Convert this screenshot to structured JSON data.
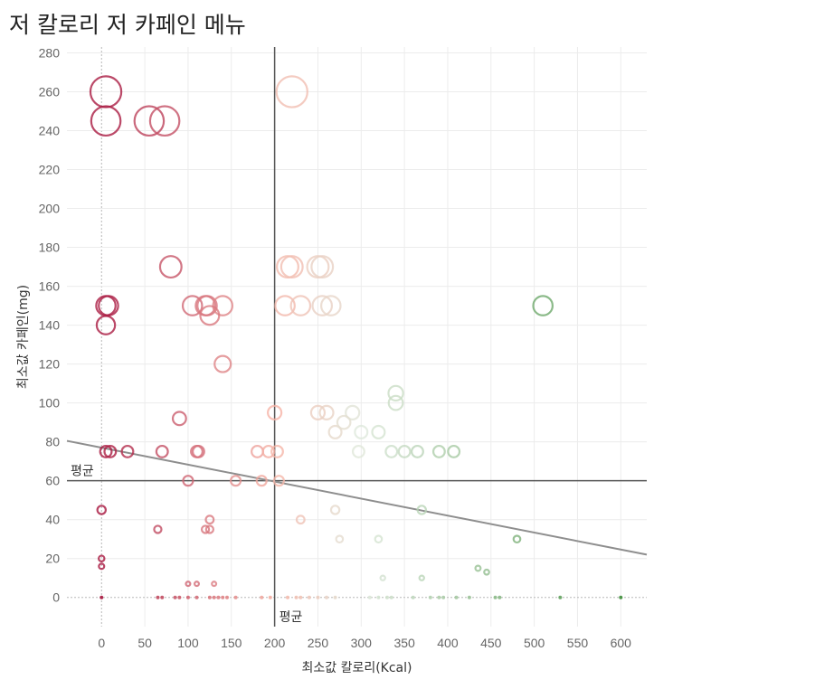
{
  "chart_data": {
    "type": "scatter",
    "title": "저 칼로리 저 카페인 메뉴",
    "xlabel": "최소값 칼로리(Kcal)",
    "ylabel": "최소값 카페인(mg)",
    "xlim": [
      -40,
      630
    ],
    "ylim": [
      -15,
      283
    ],
    "xticks": [
      0,
      50,
      100,
      150,
      200,
      250,
      300,
      350,
      400,
      450,
      500,
      550,
      600
    ],
    "yticks": [
      0,
      20,
      40,
      60,
      80,
      100,
      120,
      140,
      160,
      180,
      200,
      220,
      240,
      260,
      280
    ],
    "reference_lines": [
      {
        "axis": "x",
        "value": 200,
        "label": "평균"
      },
      {
        "axis": "y",
        "value": 60,
        "label": "평균"
      }
    ],
    "trend_line": {
      "x0": -40,
      "y0": 80.5,
      "x1": 630,
      "y1": 22
    },
    "grid": true,
    "color_scale": {
      "low": "#a8173f",
      "mid": "#f6b3a6",
      "high_mid": "#dfe9dc",
      "high": "#3e8e3a"
    },
    "points": [
      {
        "x": 5,
        "y": 260
      },
      {
        "x": 220,
        "y": 260
      },
      {
        "x": 5,
        "y": 245
      },
      {
        "x": 55,
        "y": 245
      },
      {
        "x": 73,
        "y": 245
      },
      {
        "x": 80,
        "y": 170
      },
      {
        "x": 215,
        "y": 170
      },
      {
        "x": 220,
        "y": 170
      },
      {
        "x": 250,
        "y": 170
      },
      {
        "x": 255,
        "y": 170
      },
      {
        "x": 5,
        "y": 150
      },
      {
        "x": 8,
        "y": 150
      },
      {
        "x": 105,
        "y": 150
      },
      {
        "x": 120,
        "y": 150
      },
      {
        "x": 122,
        "y": 150
      },
      {
        "x": 140,
        "y": 150
      },
      {
        "x": 212,
        "y": 150
      },
      {
        "x": 230,
        "y": 150
      },
      {
        "x": 255,
        "y": 150
      },
      {
        "x": 265,
        "y": 150
      },
      {
        "x": 510,
        "y": 150
      },
      {
        "x": 5,
        "y": 140
      },
      {
        "x": 125,
        "y": 145
      },
      {
        "x": 140,
        "y": 120
      },
      {
        "x": 340,
        "y": 105
      },
      {
        "x": 340,
        "y": 100
      },
      {
        "x": 90,
        "y": 92
      },
      {
        "x": 200,
        "y": 95
      },
      {
        "x": 250,
        "y": 95
      },
      {
        "x": 260,
        "y": 95
      },
      {
        "x": 290,
        "y": 95
      },
      {
        "x": 270,
        "y": 85
      },
      {
        "x": 280,
        "y": 90
      },
      {
        "x": 300,
        "y": 85
      },
      {
        "x": 320,
        "y": 85
      },
      {
        "x": 5,
        "y": 75
      },
      {
        "x": 10,
        "y": 75
      },
      {
        "x": 30,
        "y": 75
      },
      {
        "x": 70,
        "y": 75
      },
      {
        "x": 110,
        "y": 75
      },
      {
        "x": 112,
        "y": 75
      },
      {
        "x": 180,
        "y": 75
      },
      {
        "x": 193,
        "y": 75
      },
      {
        "x": 203,
        "y": 75
      },
      {
        "x": 297,
        "y": 75
      },
      {
        "x": 335,
        "y": 75
      },
      {
        "x": 350,
        "y": 75
      },
      {
        "x": 365,
        "y": 75
      },
      {
        "x": 390,
        "y": 75
      },
      {
        "x": 407,
        "y": 75
      },
      {
        "x": 100,
        "y": 60
      },
      {
        "x": 155,
        "y": 60
      },
      {
        "x": 185,
        "y": 60
      },
      {
        "x": 205,
        "y": 60
      },
      {
        "x": 0,
        "y": 45
      },
      {
        "x": 270,
        "y": 45
      },
      {
        "x": 370,
        "y": 45
      },
      {
        "x": 125,
        "y": 40
      },
      {
        "x": 230,
        "y": 40
      },
      {
        "x": 65,
        "y": 35
      },
      {
        "x": 120,
        "y": 35
      },
      {
        "x": 125,
        "y": 35
      },
      {
        "x": 275,
        "y": 30
      },
      {
        "x": 320,
        "y": 30
      },
      {
        "x": 480,
        "y": 30
      },
      {
        "x": 0,
        "y": 20
      },
      {
        "x": 0,
        "y": 16
      },
      {
        "x": 435,
        "y": 15
      },
      {
        "x": 445,
        "y": 13
      },
      {
        "x": 325,
        "y": 10
      },
      {
        "x": 370,
        "y": 10
      },
      {
        "x": 100,
        "y": 7
      },
      {
        "x": 110,
        "y": 7
      },
      {
        "x": 130,
        "y": 7
      },
      {
        "x": 0,
        "y": 0
      },
      {
        "x": 65,
        "y": 0
      },
      {
        "x": 70,
        "y": 0
      },
      {
        "x": 85,
        "y": 0
      },
      {
        "x": 90,
        "y": 0
      },
      {
        "x": 100,
        "y": 0
      },
      {
        "x": 110,
        "y": 0
      },
      {
        "x": 125,
        "y": 0
      },
      {
        "x": 130,
        "y": 0
      },
      {
        "x": 135,
        "y": 0
      },
      {
        "x": 140,
        "y": 0
      },
      {
        "x": 145,
        "y": 0
      },
      {
        "x": 155,
        "y": 0
      },
      {
        "x": 185,
        "y": 0
      },
      {
        "x": 195,
        "y": 0
      },
      {
        "x": 215,
        "y": 0
      },
      {
        "x": 225,
        "y": 0
      },
      {
        "x": 230,
        "y": 0
      },
      {
        "x": 240,
        "y": 0
      },
      {
        "x": 250,
        "y": 0
      },
      {
        "x": 260,
        "y": 0
      },
      {
        "x": 270,
        "y": 0
      },
      {
        "x": 310,
        "y": 0
      },
      {
        "x": 320,
        "y": 0
      },
      {
        "x": 330,
        "y": 0
      },
      {
        "x": 335,
        "y": 0
      },
      {
        "x": 360,
        "y": 0
      },
      {
        "x": 380,
        "y": 0
      },
      {
        "x": 390,
        "y": 0
      },
      {
        "x": 395,
        "y": 0
      },
      {
        "x": 410,
        "y": 0
      },
      {
        "x": 425,
        "y": 0
      },
      {
        "x": 455,
        "y": 0
      },
      {
        "x": 460,
        "y": 0
      },
      {
        "x": 530,
        "y": 0
      },
      {
        "x": 600,
        "y": 0
      }
    ]
  }
}
